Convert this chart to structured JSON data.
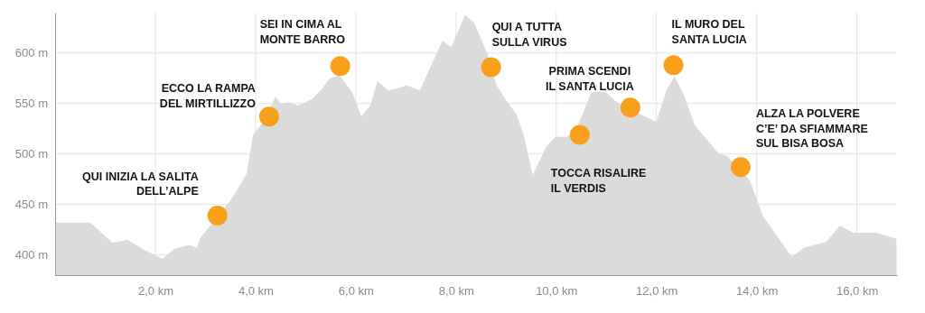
{
  "chart_data": {
    "type": "area",
    "xlim": [
      0,
      16.8
    ],
    "ylim": [
      380,
      640
    ],
    "xticks": [
      {
        "value": 2,
        "label": "2,0 km"
      },
      {
        "value": 4,
        "label": "4,0 km"
      },
      {
        "value": 6,
        "label": "6,0 km"
      },
      {
        "value": 8,
        "label": "8,0 km"
      },
      {
        "value": 10,
        "label": "10,0 km"
      },
      {
        "value": 12,
        "label": "12,0 km"
      },
      {
        "value": 14,
        "label": "14,0 km"
      },
      {
        "value": 16,
        "label": "16,0 km"
      }
    ],
    "yticks": [
      {
        "value": 400,
        "label": "400 m"
      },
      {
        "value": 450,
        "label": "450 m"
      },
      {
        "value": 500,
        "label": "500 m"
      },
      {
        "value": 550,
        "label": "550 m"
      },
      {
        "value": 600,
        "label": "600 m"
      }
    ],
    "grid": true,
    "series": [
      {
        "color": "#d9d9d9",
        "x": [
          0,
          0.7,
          0.97,
          1.15,
          1.44,
          1.78,
          2.14,
          2.38,
          2.68,
          2.83,
          2.9,
          3.53,
          3.82,
          3.95,
          4.13,
          4.4,
          4.49,
          4.67,
          4.85,
          5.12,
          5.3,
          5.48,
          5.68,
          5.93,
          6.11,
          6.29,
          6.43,
          6.65,
          6.83,
          7.01,
          7.28,
          7.46,
          7.73,
          7.91,
          8.18,
          8.36,
          8.63,
          8.81,
          8.99,
          9.21,
          9.35,
          9.53,
          9.8,
          9.98,
          10.22,
          10.43,
          10.7,
          10.97,
          11.24,
          11.6,
          12.0,
          12.2,
          12.36,
          12.54,
          12.77,
          13.23,
          13.41,
          13.86,
          14.13,
          14.7,
          14.94,
          15.39,
          15.66,
          15.93,
          16.38,
          16.79
        ],
        "values": [
          432,
          432,
          420,
          412,
          415,
          405,
          396,
          406,
          410,
          407,
          417,
          456,
          480,
          519,
          530,
          557,
          550,
          551,
          548,
          554,
          563,
          575,
          578,
          561,
          537,
          548,
          572,
          563,
          565,
          568,
          563,
          583,
          612,
          606,
          638,
          630,
          599,
          568,
          554,
          539,
          519,
          479,
          507,
          517,
          517,
          528,
          561,
          562,
          550,
          541,
          532,
          563,
          577,
          559,
          528,
          501,
          498,
          474,
          438,
          398,
          407,
          413,
          429,
          422,
          422,
          416
        ]
      },
      {
        "type": "scatter",
        "color": "#f9a01b",
        "marker": "circle",
        "x": [
          3.24,
          4.27,
          5.69,
          8.7,
          10.47,
          11.48,
          12.34,
          13.68
        ],
        "values": [
          439,
          537,
          587,
          586,
          519,
          546,
          588,
          487
        ]
      }
    ],
    "annotations": [
      {
        "text": "QUI INIZIA LA SALITA\nDELL’ALPE",
        "x": 3.24,
        "y": 439
      },
      {
        "text": "ECCO LA RAMPA\nDEL MIRTILLIZZO",
        "x": 4.27,
        "y": 537
      },
      {
        "text": "SEI IN CIMA AL\nMONTE BARRO",
        "x": 5.69,
        "y": 587
      },
      {
        "text": "QUI A TUTTA\nSULLA VIRUS",
        "x": 8.7,
        "y": 586
      },
      {
        "text": "TOCCA RISALIRE\nIL VERDIS",
        "x": 10.47,
        "y": 519
      },
      {
        "text": "PRIMA SCENDI\nIL SANTA LUCIA",
        "x": 11.48,
        "y": 546
      },
      {
        "text": "IL MURO DEL\nSANTA LUCIA",
        "x": 12.34,
        "y": 588
      },
      {
        "text": "ALZA LA POLVERE\nC’E’ DA SFIAMMARE\nSUL BISA BOSA",
        "x": 13.68,
        "y": 487
      }
    ]
  }
}
